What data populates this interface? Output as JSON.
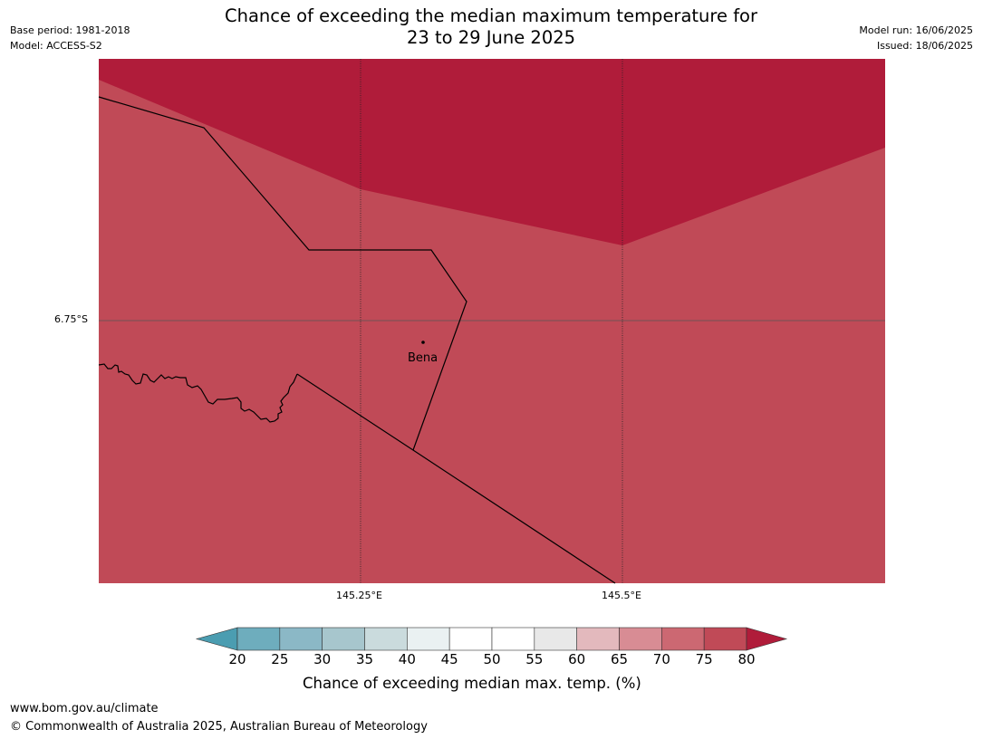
{
  "header": {
    "title_line1": "Chance of exceeding the median maximum temperature for",
    "title_line2": "23 to 29 June 2025",
    "base_period": "Base period: 1981-2018",
    "model": "Model: ACCESS-S2",
    "model_run": "Model run: 16/06/2025",
    "issued": "Issued: 18/06/2025"
  },
  "map": {
    "place": "Bena",
    "lat_label": "6.75°S",
    "lon_labels": [
      "145.25°E",
      "145.5°E"
    ],
    "fill_colors": {
      "band_75_80": "#c04a57",
      "band_above_80": "#b01c3a"
    }
  },
  "legend": {
    "title": "Chance of exceeding median max. temp. (%)",
    "ticks": [
      "20",
      "25",
      "30",
      "35",
      "40",
      "45",
      "50",
      "55",
      "60",
      "65",
      "70",
      "75",
      "80"
    ],
    "colors": [
      "#4b9db1",
      "#6eadbd",
      "#8bb8c6",
      "#a7c6cd",
      "#cadbdd",
      "#eaf1f2",
      "#ffffff",
      "#ffffff",
      "#e8e8e8",
      "#e3b9bd",
      "#d88c94",
      "#cc6872",
      "#c04a57",
      "#b01c3a"
    ]
  },
  "footer": {
    "url": "www.bom.gov.au/climate",
    "copyright": "© Commonwealth of Australia 2025, Australian Bureau of Meteorology"
  }
}
